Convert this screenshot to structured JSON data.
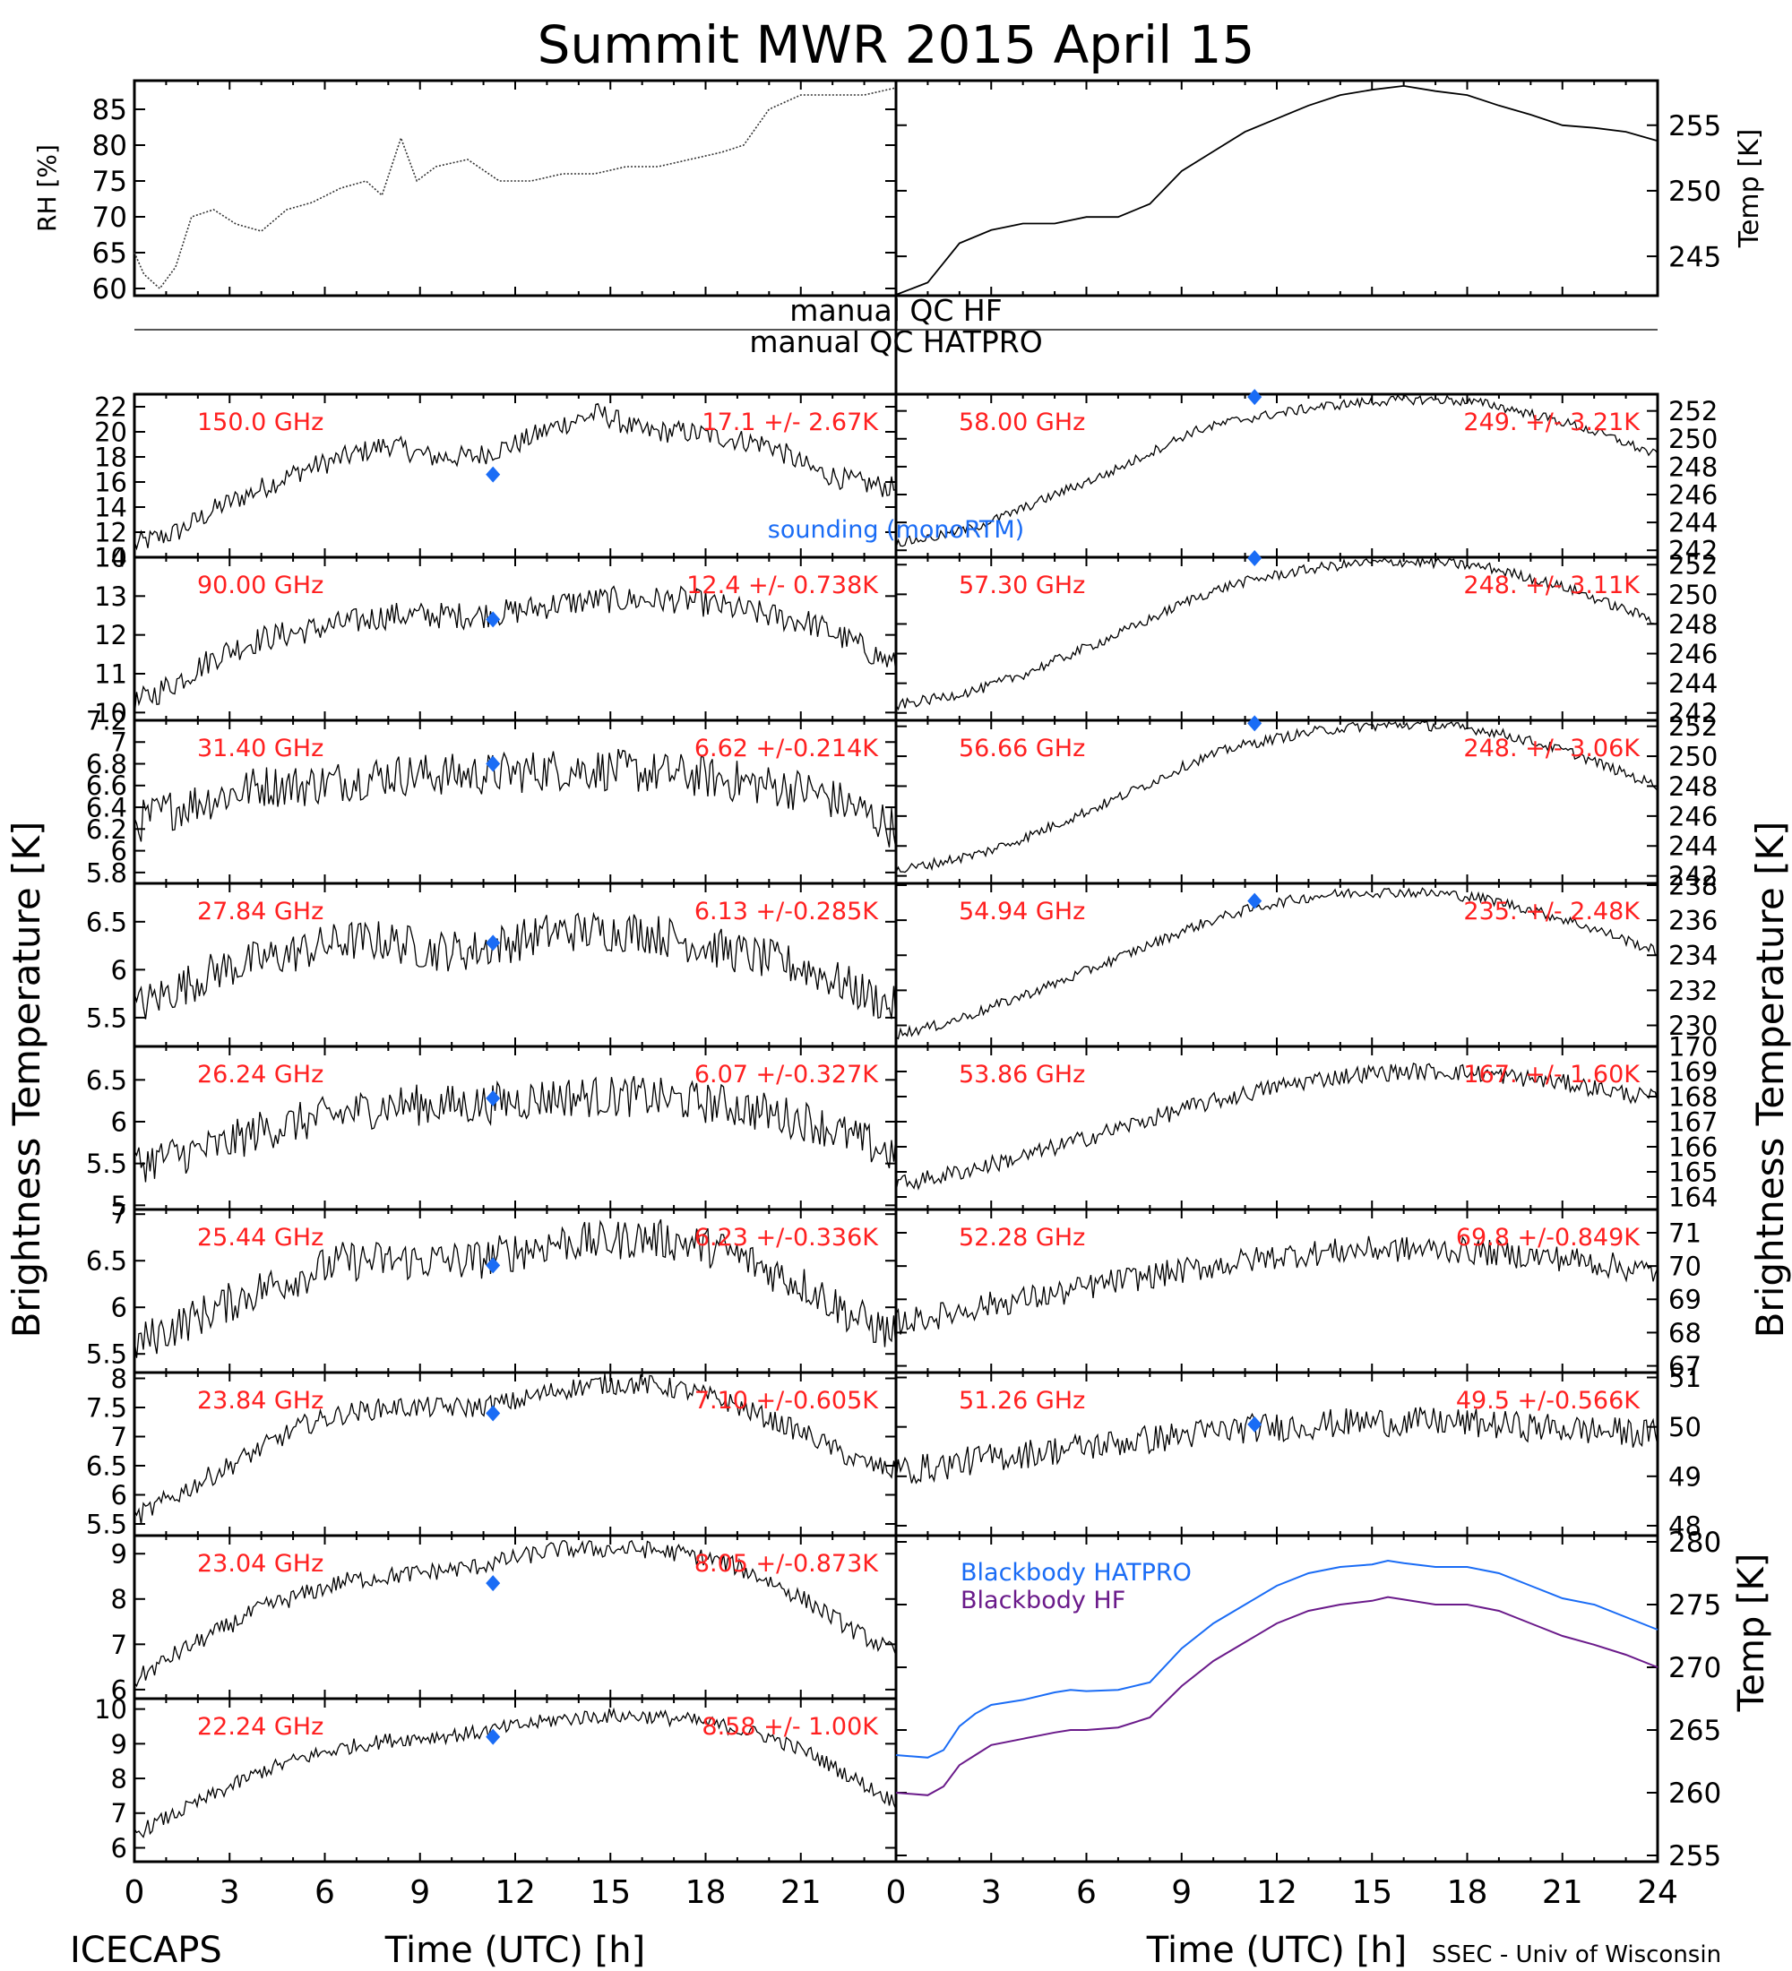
{
  "title": "Summit MWR 2015 April 15",
  "footer": {
    "left": "ICECAPS",
    "right": "SSEC - Univ of Wisconsin"
  },
  "labels": {
    "qc_hf": "manual QC HF",
    "qc_hatpro": "manual QC HATPRO",
    "sounding": "sounding (monoRTM)",
    "tb_axis": "Brightness Temperature [K]",
    "xlabel": "Time (UTC) [h]"
  },
  "colors": {
    "red": "#ff2020",
    "blue": "#1a6cf5",
    "purple": "#6a1a8a",
    "black": "#000000"
  },
  "chart_data": [
    {
      "id": "rh",
      "type": "line",
      "ylabel": "RH [%]",
      "ylim": [
        59,
        89
      ],
      "yticks": [
        60,
        65,
        70,
        75,
        80,
        85
      ],
      "series": [
        {
          "x": [
            0,
            0.3,
            0.8,
            1.3,
            1.8,
            2.5,
            3.2,
            4.0,
            4.8,
            5.6,
            6.5,
            7.3,
            7.8,
            8.4,
            8.9,
            9.5,
            10.5,
            11.5,
            12.5,
            13.5,
            14.5,
            15.5,
            16.5,
            17.5,
            18.5,
            19.2,
            20.0,
            21.0,
            22.0,
            23.0,
            24.0
          ],
          "y": [
            65,
            62,
            60,
            63,
            70,
            71,
            69,
            68,
            71,
            72,
            74,
            75,
            73,
            81,
            75,
            77,
            78,
            75,
            75,
            76,
            76,
            77,
            77,
            78,
            79,
            80,
            85,
            87,
            87,
            87,
            88
          ]
        }
      ]
    },
    {
      "id": "temp",
      "type": "line",
      "ylabel": "Temp [K]",
      "ylim": [
        242,
        258.4
      ],
      "yticks": [
        245,
        250,
        255
      ],
      "series": [
        {
          "x": [
            0,
            1,
            2,
            3,
            4,
            5,
            6,
            7,
            8,
            9,
            10,
            11,
            12,
            13,
            14,
            15,
            16,
            17,
            18,
            19,
            20,
            21,
            22,
            23,
            24
          ],
          "y": [
            242,
            243,
            246,
            247,
            247.5,
            247.5,
            248,
            248,
            249,
            251.5,
            253,
            254.5,
            255.5,
            256.5,
            257.3,
            257.7,
            258,
            257.6,
            257.3,
            256.5,
            255.8,
            255,
            254.8,
            254.5,
            253.8
          ]
        }
      ]
    },
    {
      "id": "150",
      "type": "line",
      "freq": "150.0 GHz",
      "stats": "17.1 +/- 2.67K",
      "ylim": [
        10,
        23
      ],
      "yticks": [
        10,
        12,
        14,
        16,
        18,
        20,
        22
      ],
      "sounding": 16.6,
      "shape": [
        11,
        12,
        14,
        15.5,
        17,
        18,
        19,
        18,
        18,
        19,
        20.5,
        21.5,
        20,
        20,
        19.5,
        19,
        17,
        16,
        15.5
      ],
      "noise": 0.9
    },
    {
      "id": "90",
      "type": "line",
      "freq": "90.00 GHz",
      "stats": "12.4 +/- 0.738K",
      "ylim": [
        9.8,
        14
      ],
      "yticks": [
        10,
        11,
        12,
        13,
        14
      ],
      "sounding": 12.4,
      "shape": [
        10.2,
        10.8,
        11.5,
        11.9,
        12.1,
        12.3,
        12.5,
        12.5,
        12.5,
        12.6,
        12.8,
        12.9,
        12.9,
        12.9,
        12.7,
        12.5,
        12.3,
        11.8,
        11.2
      ],
      "noise": 0.35
    },
    {
      "id": "31",
      "type": "line",
      "freq": "31.40 GHz",
      "stats": "6.62 +/-0.214K",
      "ylim": [
        5.7,
        7.2
      ],
      "yticks": [
        5.8,
        6.0,
        6.2,
        6.4,
        6.6,
        6.8,
        7.0,
        7.2
      ],
      "sounding": 6.8,
      "shape": [
        6.25,
        6.4,
        6.5,
        6.6,
        6.6,
        6.65,
        6.7,
        6.7,
        6.7,
        6.72,
        6.75,
        6.75,
        6.72,
        6.7,
        6.65,
        6.6,
        6.55,
        6.4,
        6.2
      ],
      "noise": 0.2
    },
    {
      "id": "27",
      "type": "line",
      "freq": "27.84 GHz",
      "stats": "6.13 +/-0.285K",
      "ylim": [
        5.2,
        6.9
      ],
      "yticks": [
        5.5,
        6.0,
        6.5
      ],
      "sounding": 6.28,
      "shape": [
        5.6,
        5.8,
        6.0,
        6.1,
        6.2,
        6.3,
        6.3,
        6.2,
        6.2,
        6.3,
        6.4,
        6.4,
        6.4,
        6.3,
        6.2,
        6.1,
        6.0,
        5.8,
        5.6
      ],
      "noise": 0.22
    },
    {
      "id": "26",
      "type": "line",
      "freq": "26.24 GHz",
      "stats": "6.07 +/-0.327K",
      "ylim": [
        4.95,
        6.9
      ],
      "yticks": [
        5.0,
        5.5,
        6.0,
        6.5
      ],
      "sounding": 6.28,
      "shape": [
        5.5,
        5.6,
        5.7,
        5.9,
        6.0,
        6.1,
        6.2,
        6.2,
        6.2,
        6.25,
        6.3,
        6.3,
        6.3,
        6.25,
        6.2,
        6.1,
        6.0,
        5.8,
        5.6
      ],
      "noise": 0.25
    },
    {
      "id": "25",
      "type": "line",
      "freq": "25.44 GHz",
      "stats": "6.23 +/-0.336K",
      "ylim": [
        5.3,
        7.05
      ],
      "yticks": [
        5.5,
        6.0,
        6.5,
        7.0
      ],
      "sounding": 6.45,
      "shape": [
        5.6,
        5.8,
        6.0,
        6.2,
        6.35,
        6.5,
        6.5,
        6.5,
        6.5,
        6.6,
        6.7,
        6.7,
        6.75,
        6.7,
        6.6,
        6.4,
        6.2,
        5.9,
        5.7
      ],
      "noise": 0.22
    },
    {
      "id": "2384",
      "type": "line",
      "freq": "23.84 GHz",
      "stats": "7.10 +/-0.605K",
      "ylim": [
        5.3,
        8.1
      ],
      "yticks": [
        5.5,
        6.0,
        6.5,
        7.0,
        7.5,
        8.0
      ],
      "sounding": 7.4,
      "shape": [
        5.6,
        6.0,
        6.4,
        6.8,
        7.2,
        7.4,
        7.5,
        7.5,
        7.5,
        7.6,
        7.8,
        7.9,
        7.9,
        7.8,
        7.6,
        7.3,
        7.0,
        6.6,
        6.4
      ],
      "noise": 0.18
    },
    {
      "id": "2304",
      "type": "line",
      "freq": "23.04 GHz",
      "stats": "8.05 +/-0.873K",
      "ylim": [
        5.8,
        9.4
      ],
      "yticks": [
        6,
        7,
        8,
        9
      ],
      "sounding": 8.35,
      "shape": [
        6.2,
        6.8,
        7.3,
        7.8,
        8.1,
        8.4,
        8.5,
        8.6,
        8.7,
        8.9,
        9.1,
        9.1,
        9.1,
        9.0,
        8.8,
        8.4,
        7.9,
        7.3,
        6.8
      ],
      "noise": 0.2
    },
    {
      "id": "2224",
      "type": "line",
      "freq": "22.24 GHz",
      "stats": "8.58 +/- 1.00K",
      "ylim": [
        5.6,
        10.3
      ],
      "yticks": [
        6,
        7,
        8,
        9,
        10
      ],
      "sounding": 9.2,
      "shape": [
        6.4,
        7.0,
        7.6,
        8.2,
        8.6,
        8.9,
        9.1,
        9.2,
        9.3,
        9.5,
        9.7,
        9.8,
        9.8,
        9.7,
        9.5,
        9.2,
        8.7,
        8.0,
        7.3
      ],
      "noise": 0.22
    },
    {
      "id": "58",
      "type": "line",
      "freq": "58.00 GHz",
      "stats": "249. +/- 3.21K",
      "ylim": [
        241.5,
        253.2
      ],
      "yticks": [
        242,
        244,
        246,
        248,
        250,
        252
      ],
      "sounding": 253,
      "shape": [
        242.5,
        243,
        243.8,
        245,
        246.3,
        247.5,
        249,
        250.5,
        251.3,
        251.8,
        252.3,
        252.6,
        252.8,
        252.8,
        252.5,
        251.8,
        251,
        250,
        248.8
      ],
      "noise": 0.35
    },
    {
      "id": "5730",
      "type": "line",
      "freq": "57.30 GHz",
      "stats": "248. +/- 3.11K",
      "ylim": [
        241.5,
        252.5
      ],
      "yticks": [
        242,
        244,
        246,
        248,
        250,
        252
      ],
      "sounding": 252.5,
      "shape": [
        242.5,
        243,
        243.6,
        244.6,
        245.8,
        247,
        248.3,
        249.7,
        250.7,
        251.3,
        251.8,
        252.1,
        252.2,
        252.1,
        251.8,
        251.1,
        250.3,
        249.2,
        248.2
      ],
      "noise": 0.35
    },
    {
      "id": "5666",
      "type": "line",
      "freq": "56.66 GHz",
      "stats": "248. +/- 3.06K",
      "ylim": [
        241.5,
        252.4
      ],
      "yticks": [
        242,
        244,
        246,
        248,
        250,
        252
      ],
      "sounding": 252.2,
      "shape": [
        242.3,
        242.9,
        243.5,
        244.5,
        245.7,
        246.9,
        248.2,
        249.6,
        250.6,
        251.2,
        251.7,
        252,
        252.1,
        252,
        251.7,
        251,
        250.2,
        249.1,
        248
      ],
      "noise": 0.35
    },
    {
      "id": "5494",
      "type": "line",
      "freq": "54.94 GHz",
      "stats": "235. +/- 2.48K",
      "ylim": [
        228.8,
        238.1
      ],
      "yticks": [
        230,
        232,
        234,
        236,
        238
      ],
      "sounding": 237.1,
      "shape": [
        229.5,
        230,
        230.8,
        231.7,
        232.6,
        233.6,
        234.6,
        235.6,
        236.4,
        237,
        237.4,
        237.6,
        237.6,
        237.5,
        237.2,
        236.6,
        235.9,
        235.1,
        234.2
      ],
      "noise": 0.3
    },
    {
      "id": "5386",
      "type": "line",
      "freq": "53.86 GHz",
      "stats": "167. +/- 1.60K",
      "ylim": [
        163.5,
        170
      ],
      "yticks": [
        164,
        165,
        166,
        167,
        168,
        169,
        170
      ],
      "sounding": null,
      "shape": [
        164.5,
        164.8,
        165.2,
        165.6,
        166.1,
        166.6,
        167.1,
        167.6,
        168,
        168.4,
        168.7,
        168.9,
        169,
        169,
        168.9,
        168.7,
        168.5,
        168.2,
        167.9
      ],
      "noise": 0.35
    },
    {
      "id": "5228",
      "type": "line",
      "freq": "52.28 GHz",
      "stats": "69.8 +/-0.849K",
      "ylim": [
        66.8,
        71.7
      ],
      "yticks": [
        67,
        68,
        69,
        70,
        71
      ],
      "sounding": null,
      "shape": [
        68.3,
        68.5,
        68.8,
        69,
        69.2,
        69.5,
        69.7,
        69.9,
        70.1,
        70.3,
        70.4,
        70.5,
        70.5,
        70.5,
        70.4,
        70.3,
        70.2,
        70,
        69.8
      ],
      "noise": 0.4
    },
    {
      "id": "5126",
      "type": "line",
      "freq": "51.26 GHz",
      "stats": "49.5 +/-0.566K",
      "ylim": [
        47.8,
        51.1
      ],
      "yticks": [
        48,
        49,
        50,
        51
      ],
      "sounding": 50.05,
      "shape": [
        49.1,
        49.2,
        49.35,
        49.45,
        49.55,
        49.65,
        49.75,
        49.85,
        49.95,
        50.0,
        50.05,
        50.1,
        50.1,
        50.1,
        50.05,
        50.0,
        49.95,
        49.9,
        49.85
      ],
      "noise": 0.3
    },
    {
      "id": "blackbody",
      "type": "line",
      "ylabel": "Temp [K]",
      "ylim": [
        254.5,
        280.5
      ],
      "yticks": [
        255,
        260,
        265,
        270,
        275,
        280
      ],
      "series": [
        {
          "name": "Blackbody HATPRO",
          "x": [
            0,
            1,
            1.5,
            2,
            2.5,
            3,
            4,
            5,
            5.5,
            6,
            7,
            8,
            9,
            10,
            11,
            12,
            13,
            14,
            15,
            15.5,
            16,
            17,
            18,
            19,
            20,
            21,
            22,
            23,
            24
          ],
          "y": [
            263,
            262.8,
            263.4,
            265.3,
            266.3,
            267,
            267.4,
            268,
            268.2,
            268.1,
            268.2,
            268.8,
            271.5,
            273.5,
            275,
            276.5,
            277.5,
            278,
            278.2,
            278.5,
            278.3,
            278,
            278,
            277.5,
            276.5,
            275.5,
            275,
            274,
            273
          ]
        },
        {
          "name": "Blackbody HF",
          "x": [
            0,
            1,
            1.5,
            2,
            2.5,
            3,
            4,
            5,
            5.5,
            6,
            7,
            8,
            9,
            10,
            11,
            12,
            13,
            14,
            15,
            15.5,
            16,
            17,
            18,
            19,
            20,
            21,
            22,
            23,
            24
          ],
          "y": [
            260,
            259.8,
            260.5,
            262.2,
            263,
            263.8,
            264.3,
            264.8,
            265,
            265,
            265.2,
            266,
            268.5,
            270.5,
            272,
            273.5,
            274.5,
            275,
            275.3,
            275.6,
            275.4,
            275,
            275,
            274.5,
            273.5,
            272.5,
            271.8,
            271,
            270
          ]
        }
      ]
    }
  ],
  "xaxis": {
    "ticks": [
      "0",
      "3",
      "6",
      "9",
      "12",
      "15",
      "18",
      "21"
    ],
    "ticks_right": [
      "0",
      "3",
      "6",
      "9",
      "12",
      "15",
      "18",
      "21",
      "24"
    ],
    "xlim": [
      0,
      24
    ]
  }
}
